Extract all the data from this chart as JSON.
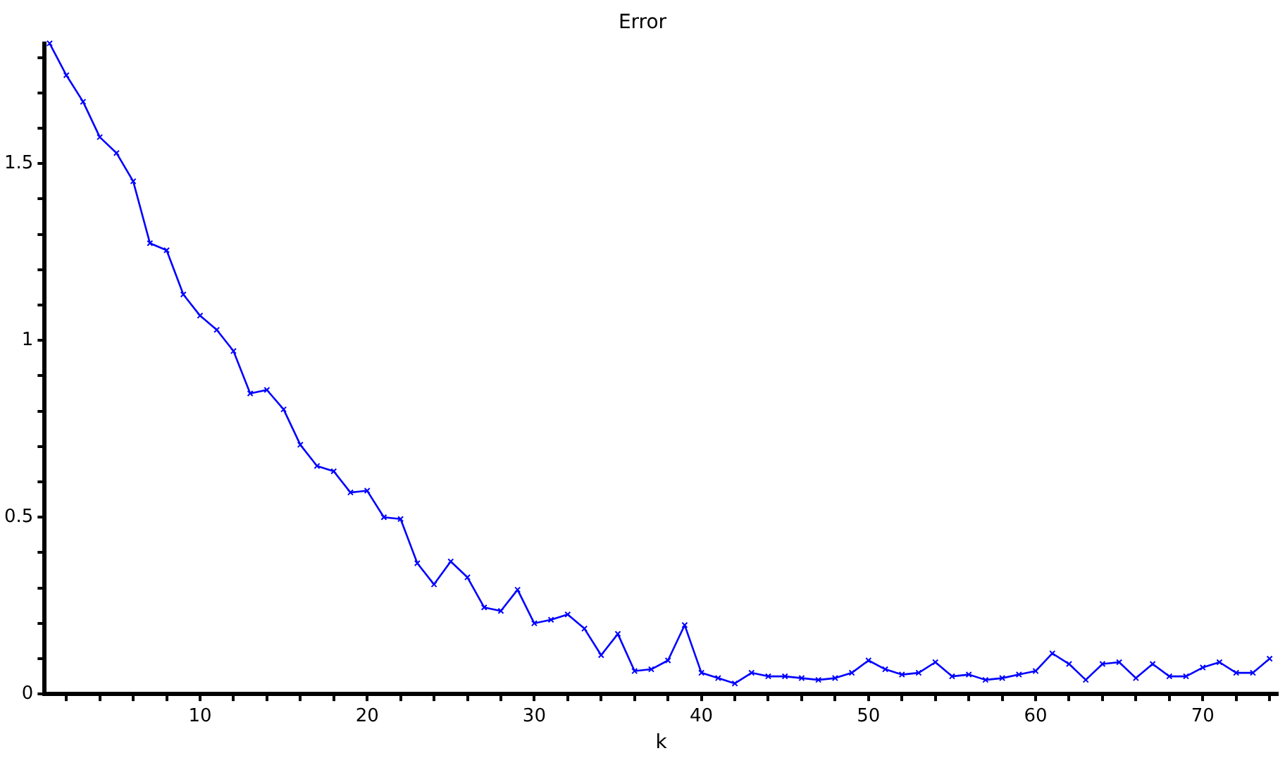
{
  "chart_data": {
    "type": "line",
    "title": "Error",
    "xlabel": "k",
    "x": [
      1,
      2,
      3,
      4,
      5,
      6,
      7,
      8,
      9,
      10,
      11,
      12,
      13,
      14,
      15,
      16,
      17,
      18,
      19,
      20,
      21,
      22,
      23,
      24,
      25,
      26,
      27,
      28,
      29,
      30,
      31,
      32,
      33,
      34,
      35,
      36,
      37,
      38,
      39,
      40,
      41,
      42,
      43,
      44,
      45,
      46,
      47,
      48,
      49,
      50,
      51,
      52,
      53,
      54,
      55,
      56,
      57,
      58,
      59,
      60,
      61,
      62,
      63,
      64,
      65,
      66,
      67,
      68,
      69,
      70,
      71,
      72,
      73,
      74
    ],
    "series": [
      {
        "color": "#0000ff",
        "values": [
          1.84,
          1.75,
          1.675,
          1.575,
          1.53,
          1.45,
          1.275,
          1.255,
          1.13,
          1.07,
          1.03,
          0.97,
          0.85,
          0.86,
          0.805,
          0.705,
          0.645,
          0.63,
          0.57,
          0.575,
          0.5,
          0.495,
          0.37,
          0.31,
          0.375,
          0.33,
          0.245,
          0.235,
          0.295,
          0.2,
          0.21,
          0.225,
          0.185,
          0.11,
          0.17,
          0.065,
          0.07,
          0.095,
          0.195,
          0.06,
          0.045,
          0.03,
          0.06,
          0.05,
          0.05,
          0.045,
          0.04,
          0.045,
          0.06,
          0.095,
          0.07,
          0.055,
          0.06,
          0.09,
          0.05,
          0.055,
          0.04,
          0.045,
          0.055,
          0.065,
          0.115,
          0.085,
          0.04,
          0.085,
          0.09,
          0.045,
          0.085,
          0.05,
          0.05,
          0.075,
          0.09,
          0.06,
          0.06,
          0.1
        ]
      }
    ],
    "xlim": [
      0.7,
      74.5
    ],
    "xticks": [
      {
        "value": 2,
        "label": null
      },
      {
        "value": 4,
        "label": null
      },
      {
        "value": 6,
        "label": null
      },
      {
        "value": 8,
        "label": null
      },
      10,
      {
        "value": 12,
        "label": null
      },
      {
        "value": 14,
        "label": null
      },
      {
        "value": 16,
        "label": null
      },
      {
        "value": 18,
        "label": null
      },
      20,
      {
        "value": 22,
        "label": null
      },
      {
        "value": 24,
        "label": null
      },
      {
        "value": 26,
        "label": null
      },
      {
        "value": 28,
        "label": null
      },
      30,
      {
        "value": 32,
        "label": null
      },
      {
        "value": 34,
        "label": null
      },
      {
        "value": 36,
        "label": null
      },
      {
        "value": 38,
        "label": null
      },
      40,
      {
        "value": 42,
        "label": null
      },
      {
        "value": 44,
        "label": null
      },
      {
        "value": 46,
        "label": null
      },
      {
        "value": 48,
        "label": null
      },
      50,
      {
        "value": 52,
        "label": null
      },
      {
        "value": 54,
        "label": null
      },
      {
        "value": 56,
        "label": null
      },
      {
        "value": 58,
        "label": null
      },
      60,
      {
        "value": 62,
        "label": null
      },
      {
        "value": 64,
        "label": null
      },
      {
        "value": 66,
        "label": null
      },
      {
        "value": 68,
        "label": null
      },
      70,
      {
        "value": 72,
        "label": null
      },
      {
        "value": 74,
        "label": null
      }
    ],
    "ylim": [
      0,
      1.84
    ],
    "yticks": [
      0,
      {
        "value": 0.1,
        "label": null
      },
      {
        "value": 0.2,
        "label": null
      },
      {
        "value": 0.3,
        "label": null
      },
      {
        "value": 0.4,
        "label": null
      },
      0.5,
      {
        "value": 0.6,
        "label": null
      },
      {
        "value": 0.7,
        "label": null
      },
      {
        "value": 0.8,
        "label": null
      },
      {
        "value": 0.9,
        "label": null
      },
      1,
      {
        "value": 1.1,
        "label": null
      },
      {
        "value": 1.2,
        "label": null
      },
      {
        "value": 1.3,
        "label": null
      },
      {
        "value": 1.4,
        "label": null
      },
      1.5,
      {
        "value": 1.6,
        "label": null
      },
      {
        "value": 1.7,
        "label": null
      },
      {
        "value": 1.8,
        "label": null
      }
    ],
    "grid": false,
    "legend": false,
    "marker": "cross",
    "line_style": "solid"
  }
}
